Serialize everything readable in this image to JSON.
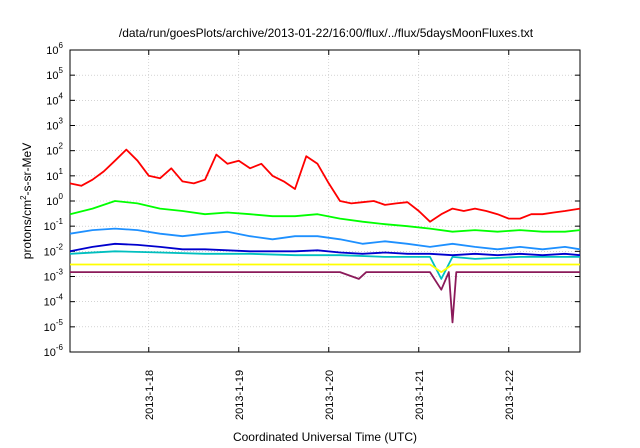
{
  "chart_data": {
    "type": "line",
    "title": "/data/run/goesPlots/archive/2013-01-22/16:00/flux/../flux/5daysMoonFluxes.txt",
    "xlabel": "Coordinated Universal Time (UTC)",
    "ylabel_parts": [
      "protons/cm",
      "2",
      "-s-sr-MeV"
    ],
    "y_scale": "log",
    "y_range": [
      1e-06,
      1000000.0
    ],
    "y_ticks": [
      {
        "base": "10",
        "exp": "6",
        "value": 1000000.0
      },
      {
        "base": "10",
        "exp": "5",
        "value": 100000.0
      },
      {
        "base": "10",
        "exp": "4",
        "value": 10000.0
      },
      {
        "base": "10",
        "exp": "3",
        "value": 1000.0
      },
      {
        "base": "10",
        "exp": "2",
        "value": 100.0
      },
      {
        "base": "10",
        "exp": "1",
        "value": 10.0
      },
      {
        "base": "10",
        "exp": "0",
        "value": 1.0
      },
      {
        "base": "10",
        "exp": "-1",
        "value": 0.1
      },
      {
        "base": "10",
        "exp": "-2",
        "value": 0.01
      },
      {
        "base": "10",
        "exp": "-3",
        "value": 0.001
      },
      {
        "base": "10",
        "exp": "-4",
        "value": 0.0001
      },
      {
        "base": "10",
        "exp": "-5",
        "value": 1e-05
      },
      {
        "base": "10",
        "exp": "-6",
        "value": 1e-06
      }
    ],
    "x_range": [
      "2013-01-17T03:00",
      "2013-01-22T19:00"
    ],
    "x_ticks": [
      {
        "label": "2013-1-18",
        "value": "2013-01-18T00:00"
      },
      {
        "label": "2013-1-19",
        "value": "2013-01-19T00:00"
      },
      {
        "label": "2013-1-20",
        "value": "2013-01-20T00:00"
      },
      {
        "label": "2013-1-21",
        "value": "2013-01-21T00:00"
      },
      {
        "label": "2013-1-22",
        "value": "2013-01-22T00:00"
      }
    ],
    "grid": true,
    "legend": "none",
    "series": [
      {
        "color": "#ff0000",
        "points": [
          [
            "2013-01-17T03:00",
            5
          ],
          [
            "2013-01-17T06:00",
            4
          ],
          [
            "2013-01-17T09:00",
            7
          ],
          [
            "2013-01-17T12:00",
            15
          ],
          [
            "2013-01-17T15:00",
            40
          ],
          [
            "2013-01-17T18:00",
            110
          ],
          [
            "2013-01-17T21:00",
            40
          ],
          [
            "2013-01-18T00:00",
            10
          ],
          [
            "2013-01-18T03:00",
            8
          ],
          [
            "2013-01-18T06:00",
            20
          ],
          [
            "2013-01-18T09:00",
            6
          ],
          [
            "2013-01-18T12:00",
            5
          ],
          [
            "2013-01-18T15:00",
            7
          ],
          [
            "2013-01-18T18:00",
            70
          ],
          [
            "2013-01-18T21:00",
            30
          ],
          [
            "2013-01-19T00:00",
            40
          ],
          [
            "2013-01-19T03:00",
            20
          ],
          [
            "2013-01-19T06:00",
            30
          ],
          [
            "2013-01-19T09:00",
            10
          ],
          [
            "2013-01-19T12:00",
            6
          ],
          [
            "2013-01-19T15:00",
            3
          ],
          [
            "2013-01-19T18:00",
            60
          ],
          [
            "2013-01-19T21:00",
            30
          ],
          [
            "2013-01-20T00:00",
            5
          ],
          [
            "2013-01-20T03:00",
            1
          ],
          [
            "2013-01-20T06:00",
            0.8
          ],
          [
            "2013-01-20T09:00",
            0.9
          ],
          [
            "2013-01-20T12:00",
            1
          ],
          [
            "2013-01-20T15:00",
            0.7
          ],
          [
            "2013-01-20T18:00",
            0.8
          ],
          [
            "2013-01-20T21:00",
            0.9
          ],
          [
            "2013-01-21T00:00",
            0.4
          ],
          [
            "2013-01-21T03:00",
            0.15
          ],
          [
            "2013-01-21T06:00",
            0.3
          ],
          [
            "2013-01-21T09:00",
            0.5
          ],
          [
            "2013-01-21T12:00",
            0.4
          ],
          [
            "2013-01-21T15:00",
            0.5
          ],
          [
            "2013-01-21T18:00",
            0.4
          ],
          [
            "2013-01-21T21:00",
            0.3
          ],
          [
            "2013-01-22T00:00",
            0.2
          ],
          [
            "2013-01-22T03:00",
            0.2
          ],
          [
            "2013-01-22T06:00",
            0.3
          ],
          [
            "2013-01-22T09:00",
            0.3
          ],
          [
            "2013-01-22T12:00",
            0.35
          ],
          [
            "2013-01-22T15:00",
            0.4
          ],
          [
            "2013-01-22T19:00",
            0.5
          ]
        ]
      },
      {
        "color": "#00ff00",
        "points": [
          [
            "2013-01-17T03:00",
            0.3
          ],
          [
            "2013-01-17T09:00",
            0.5
          ],
          [
            "2013-01-17T15:00",
            1.0
          ],
          [
            "2013-01-17T21:00",
            0.8
          ],
          [
            "2013-01-18T03:00",
            0.5
          ],
          [
            "2013-01-18T09:00",
            0.4
          ],
          [
            "2013-01-18T15:00",
            0.3
          ],
          [
            "2013-01-18T21:00",
            0.35
          ],
          [
            "2013-01-19T03:00",
            0.3
          ],
          [
            "2013-01-19T09:00",
            0.25
          ],
          [
            "2013-01-19T15:00",
            0.25
          ],
          [
            "2013-01-19T21:00",
            0.3
          ],
          [
            "2013-01-20T03:00",
            0.2
          ],
          [
            "2013-01-20T09:00",
            0.15
          ],
          [
            "2013-01-20T15:00",
            0.12
          ],
          [
            "2013-01-20T21:00",
            0.1
          ],
          [
            "2013-01-21T03:00",
            0.08
          ],
          [
            "2013-01-21T09:00",
            0.06
          ],
          [
            "2013-01-21T15:00",
            0.07
          ],
          [
            "2013-01-21T21:00",
            0.06
          ],
          [
            "2013-01-22T03:00",
            0.07
          ],
          [
            "2013-01-22T09:00",
            0.06
          ],
          [
            "2013-01-22T15:00",
            0.06
          ],
          [
            "2013-01-22T19:00",
            0.07
          ]
        ]
      },
      {
        "color": "#1e90ff",
        "points": [
          [
            "2013-01-17T03:00",
            0.05
          ],
          [
            "2013-01-17T09:00",
            0.07
          ],
          [
            "2013-01-17T15:00",
            0.08
          ],
          [
            "2013-01-17T21:00",
            0.07
          ],
          [
            "2013-01-18T03:00",
            0.05
          ],
          [
            "2013-01-18T09:00",
            0.04
          ],
          [
            "2013-01-18T15:00",
            0.05
          ],
          [
            "2013-01-18T21:00",
            0.06
          ],
          [
            "2013-01-19T03:00",
            0.04
          ],
          [
            "2013-01-19T09:00",
            0.03
          ],
          [
            "2013-01-19T15:00",
            0.04
          ],
          [
            "2013-01-19T21:00",
            0.04
          ],
          [
            "2013-01-20T03:00",
            0.03
          ],
          [
            "2013-01-20T09:00",
            0.02
          ],
          [
            "2013-01-20T15:00",
            0.025
          ],
          [
            "2013-01-20T21:00",
            0.02
          ],
          [
            "2013-01-21T03:00",
            0.015
          ],
          [
            "2013-01-21T09:00",
            0.02
          ],
          [
            "2013-01-21T15:00",
            0.015
          ],
          [
            "2013-01-21T21:00",
            0.012
          ],
          [
            "2013-01-22T03:00",
            0.015
          ],
          [
            "2013-01-22T09:00",
            0.012
          ],
          [
            "2013-01-22T15:00",
            0.015
          ],
          [
            "2013-01-22T19:00",
            0.012
          ]
        ]
      },
      {
        "color": "#00bfbf",
        "points": [
          [
            "2013-01-17T03:00",
            0.008
          ],
          [
            "2013-01-17T15:00",
            0.01
          ],
          [
            "2013-01-18T03:00",
            0.009
          ],
          [
            "2013-01-18T15:00",
            0.008
          ],
          [
            "2013-01-19T03:00",
            0.008
          ],
          [
            "2013-01-19T15:00",
            0.007
          ],
          [
            "2013-01-20T03:00",
            0.007
          ],
          [
            "2013-01-20T15:00",
            0.006
          ],
          [
            "2013-01-21T03:00",
            0.006
          ],
          [
            "2013-01-21T06:00",
            0.0008
          ],
          [
            "2013-01-21T09:00",
            0.006
          ],
          [
            "2013-01-21T15:00",
            0.005
          ],
          [
            "2013-01-22T03:00",
            0.006
          ],
          [
            "2013-01-22T19:00",
            0.006
          ]
        ]
      },
      {
        "color": "#0000cd",
        "points": [
          [
            "2013-01-17T03:00",
            0.01
          ],
          [
            "2013-01-17T09:00",
            0.015
          ],
          [
            "2013-01-17T15:00",
            0.02
          ],
          [
            "2013-01-17T21:00",
            0.018
          ],
          [
            "2013-01-18T03:00",
            0.015
          ],
          [
            "2013-01-18T09:00",
            0.012
          ],
          [
            "2013-01-18T15:00",
            0.012
          ],
          [
            "2013-01-18T21:00",
            0.011
          ],
          [
            "2013-01-19T03:00",
            0.01
          ],
          [
            "2013-01-19T09:00",
            0.01
          ],
          [
            "2013-01-19T15:00",
            0.01
          ],
          [
            "2013-01-19T21:00",
            0.011
          ],
          [
            "2013-01-20T03:00",
            0.009
          ],
          [
            "2013-01-20T09:00",
            0.008
          ],
          [
            "2013-01-20T15:00",
            0.009
          ],
          [
            "2013-01-20T21:00",
            0.008
          ],
          [
            "2013-01-21T03:00",
            0.008
          ],
          [
            "2013-01-21T09:00",
            0.007
          ],
          [
            "2013-01-21T15:00",
            0.008
          ],
          [
            "2013-01-21T21:00",
            0.007
          ],
          [
            "2013-01-22T03:00",
            0.008
          ],
          [
            "2013-01-22T09:00",
            0.007
          ],
          [
            "2013-01-22T15:00",
            0.008
          ],
          [
            "2013-01-22T19:00",
            0.007
          ]
        ]
      },
      {
        "color": "#ffff00",
        "points": [
          [
            "2013-01-17T03:00",
            0.003
          ],
          [
            "2013-01-18T03:00",
            0.003
          ],
          [
            "2013-01-19T03:00",
            0.003
          ],
          [
            "2013-01-20T03:00",
            0.003
          ],
          [
            "2013-01-21T03:00",
            0.003
          ],
          [
            "2013-01-21T06:00",
            0.0015
          ],
          [
            "2013-01-21T09:00",
            0.003
          ],
          [
            "2013-01-22T03:00",
            0.003
          ],
          [
            "2013-01-22T19:00",
            0.003
          ]
        ]
      },
      {
        "color": "#8b1a5a",
        "points": [
          [
            "2013-01-17T03:00",
            0.0015
          ],
          [
            "2013-01-18T03:00",
            0.0015
          ],
          [
            "2013-01-19T03:00",
            0.0015
          ],
          [
            "2013-01-20T03:00",
            0.0015
          ],
          [
            "2013-01-20T08:00",
            0.0008
          ],
          [
            "2013-01-20T10:00",
            0.0015
          ],
          [
            "2013-01-21T03:00",
            0.0015
          ],
          [
            "2013-01-21T06:00",
            0.0003
          ],
          [
            "2013-01-21T08:00",
            0.0015
          ],
          [
            "2013-01-21T09:00",
            1.5e-05
          ],
          [
            "2013-01-21T10:00",
            0.0015
          ],
          [
            "2013-01-22T03:00",
            0.0015
          ],
          [
            "2013-01-22T19:00",
            0.0015
          ]
        ]
      }
    ]
  }
}
